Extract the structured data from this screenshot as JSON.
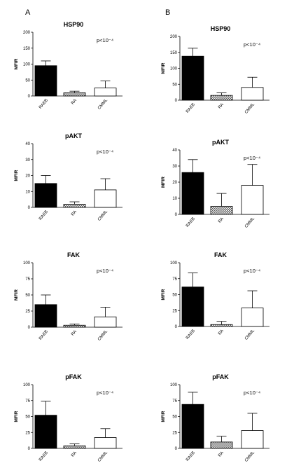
{
  "panel_labels": [
    "A",
    "B"
  ],
  "chart_data": [
    {
      "type": "bar",
      "panel": "A",
      "title": "HSP90",
      "ylabel": "MFIR",
      "ylim": [
        0,
        200
      ],
      "ticks": [
        0,
        50,
        100,
        150,
        200
      ],
      "categories": [
        "RAEB",
        "RA",
        "CMML"
      ],
      "values": [
        95,
        10,
        25
      ],
      "errors": [
        15,
        5,
        22
      ],
      "annotation": "p<10⁻⁴"
    },
    {
      "type": "bar",
      "panel": "A",
      "title": "pAKT",
      "ylabel": "MFIR",
      "ylim": [
        0,
        40
      ],
      "ticks": [
        0,
        10,
        20,
        30,
        40
      ],
      "categories": [
        "RAEB",
        "RA",
        "CMML"
      ],
      "values": [
        15,
        2,
        11
      ],
      "errors": [
        5,
        1.5,
        7
      ],
      "annotation": "p<10⁻⁴"
    },
    {
      "type": "bar",
      "panel": "A",
      "title": "FAK",
      "ylabel": "MFIR",
      "ylim": [
        0,
        100
      ],
      "ticks": [
        0,
        25,
        50,
        75,
        100
      ],
      "categories": [
        "RAEB",
        "RA",
        "CMML"
      ],
      "values": [
        35,
        3,
        16
      ],
      "errors": [
        15,
        2,
        15
      ],
      "annotation": "p<10⁻⁴"
    },
    {
      "type": "bar",
      "panel": "A",
      "title": "pFAK",
      "ylabel": "MFIR",
      "ylim": [
        0,
        100
      ],
      "ticks": [
        0,
        25,
        50,
        75,
        100
      ],
      "categories": [
        "RAEB",
        "RA",
        "CMML"
      ],
      "values": [
        52,
        4,
        17
      ],
      "errors": [
        22,
        3,
        14
      ],
      "annotation": "p<10⁻⁴"
    },
    {
      "type": "bar",
      "panel": "B",
      "title": "HSP90",
      "ylabel": "MFIR",
      "ylim": [
        0,
        200
      ],
      "ticks": [
        0,
        50,
        100,
        150,
        200
      ],
      "categories": [
        "RAEB",
        "RA",
        "CMML"
      ],
      "values": [
        138,
        15,
        40
      ],
      "errors": [
        25,
        8,
        32
      ],
      "annotation": "p<10⁻⁴"
    },
    {
      "type": "bar",
      "panel": "B",
      "title": "pAKT",
      "ylabel": "MFIR",
      "ylim": [
        0,
        40
      ],
      "ticks": [
        0,
        10,
        20,
        30,
        40
      ],
      "categories": [
        "RAEB",
        "RA",
        "CMML"
      ],
      "values": [
        26,
        5,
        18
      ],
      "errors": [
        8,
        8,
        13
      ],
      "annotation": "p<10⁻⁴"
    },
    {
      "type": "bar",
      "panel": "B",
      "title": "FAK",
      "ylabel": "MFIR",
      "ylim": [
        0,
        100
      ],
      "ticks": [
        0,
        25,
        50,
        75,
        100
      ],
      "categories": [
        "RAEB",
        "RA",
        "CMML"
      ],
      "values": [
        62,
        3,
        29
      ],
      "errors": [
        22,
        5,
        27
      ],
      "annotation": "p<10⁻⁴"
    },
    {
      "type": "bar",
      "panel": "B",
      "title": "pFAK",
      "ylabel": "MFIR",
      "ylim": [
        0,
        100
      ],
      "ticks": [
        0,
        25,
        50,
        75,
        100
      ],
      "categories": [
        "RAEB",
        "RA",
        "CMML"
      ],
      "values": [
        69,
        10,
        28
      ],
      "errors": [
        19,
        9,
        27
      ],
      "annotation": "p<10⁻⁴"
    }
  ],
  "fills": {
    "RAEB": "#000000",
    "RA": "pattern",
    "CMML": "#ffffff"
  }
}
